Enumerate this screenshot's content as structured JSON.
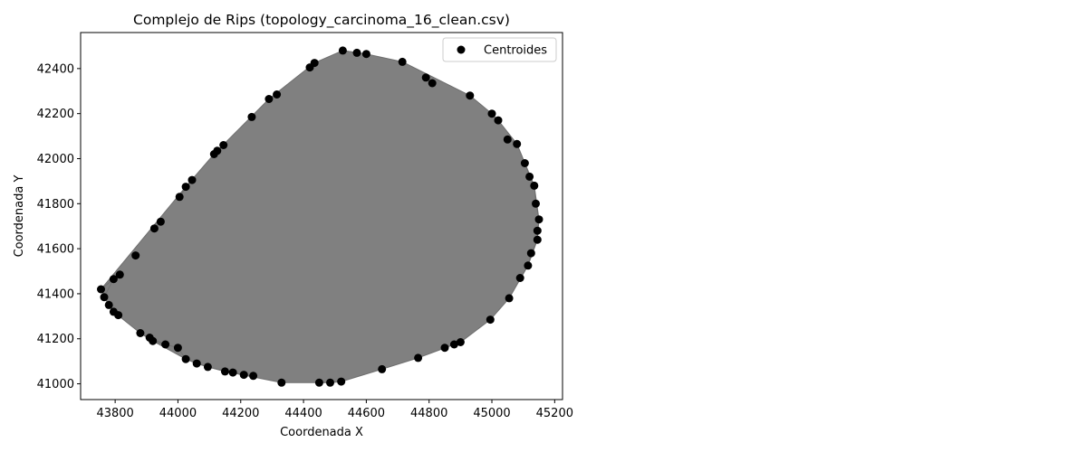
{
  "chart_data": {
    "type": "scatter",
    "title": "Complejo de Rips (topology_carcinoma_16_clean.csv)",
    "xlabel": "Coordenada X",
    "ylabel": "Coordenada Y",
    "xlim": [
      43690,
      45225
    ],
    "ylim": [
      40930,
      42560
    ],
    "xticks": [
      43800,
      44000,
      44200,
      44400,
      44600,
      44800,
      45000,
      45200
    ],
    "yticks": [
      41000,
      41200,
      41400,
      41600,
      41800,
      42000,
      42200,
      42400
    ],
    "grid": false,
    "legend_position": "top-right",
    "complex_fill_color": "#808080",
    "point_color": "#000000",
    "series": [
      {
        "name": "Centroides",
        "points": [
          [
            43755,
            41420
          ],
          [
            43765,
            41385
          ],
          [
            43780,
            41350
          ],
          [
            43795,
            41320
          ],
          [
            43810,
            41305
          ],
          [
            43795,
            41465
          ],
          [
            43815,
            41485
          ],
          [
            43865,
            41570
          ],
          [
            43880,
            41225
          ],
          [
            43910,
            41205
          ],
          [
            43920,
            41190
          ],
          [
            43925,
            41690
          ],
          [
            43945,
            41720
          ],
          [
            43960,
            41175
          ],
          [
            44000,
            41160
          ],
          [
            44005,
            41830
          ],
          [
            44025,
            41875
          ],
          [
            44025,
            41110
          ],
          [
            44045,
            41905
          ],
          [
            44060,
            41090
          ],
          [
            44095,
            41075
          ],
          [
            44115,
            42020
          ],
          [
            44125,
            42035
          ],
          [
            44145,
            42060
          ],
          [
            44150,
            41055
          ],
          [
            44175,
            41050
          ],
          [
            44210,
            41040
          ],
          [
            44235,
            42185
          ],
          [
            44240,
            41035
          ],
          [
            44290,
            42265
          ],
          [
            44315,
            42285
          ],
          [
            44330,
            41005
          ],
          [
            44420,
            42405
          ],
          [
            44435,
            42425
          ],
          [
            44450,
            41005
          ],
          [
            44485,
            41005
          ],
          [
            44520,
            41010
          ],
          [
            44525,
            42480
          ],
          [
            44570,
            42470
          ],
          [
            44600,
            42465
          ],
          [
            44650,
            41065
          ],
          [
            44715,
            42430
          ],
          [
            44765,
            41115
          ],
          [
            44790,
            42360
          ],
          [
            44810,
            42335
          ],
          [
            44850,
            41160
          ],
          [
            44880,
            41175
          ],
          [
            44900,
            41185
          ],
          [
            44930,
            42280
          ],
          [
            44995,
            41285
          ],
          [
            45000,
            42200
          ],
          [
            45020,
            42170
          ],
          [
            45050,
            42085
          ],
          [
            45055,
            41380
          ],
          [
            45080,
            42065
          ],
          [
            45090,
            41470
          ],
          [
            45105,
            41980
          ],
          [
            45115,
            41525
          ],
          [
            45120,
            41920
          ],
          [
            45125,
            41580
          ],
          [
            45135,
            41880
          ],
          [
            45140,
            41800
          ],
          [
            45145,
            41640
          ],
          [
            45150,
            41730
          ],
          [
            45145,
            41680
          ]
        ]
      }
    ]
  }
}
